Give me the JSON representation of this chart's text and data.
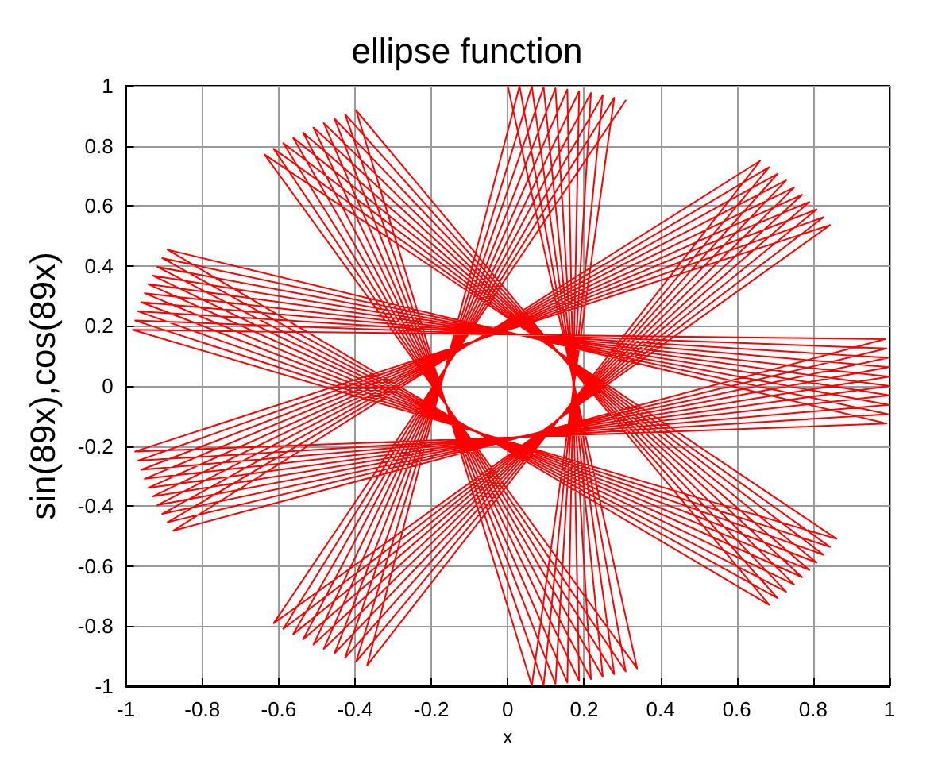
{
  "chart_data": {
    "type": "line",
    "title": "ellipse function",
    "xlabel": "x",
    "ylabel": "sin(89x),cos(89x)",
    "xlim": [
      -1,
      1
    ],
    "ylim": [
      -1,
      1
    ],
    "xticks": [
      -1,
      -0.8,
      -0.6,
      -0.4,
      -0.2,
      0,
      0.2,
      0.4,
      0.6,
      0.8,
      1
    ],
    "yticks": [
      -1,
      -0.8,
      -0.6,
      -0.4,
      -0.2,
      0,
      0.2,
      0.4,
      0.6,
      0.8,
      1
    ],
    "grid": true,
    "marker": "none",
    "line_style": "solid",
    "series": [
      {
        "color": "#ff0000",
        "x": [
          0,
          0.339,
          -0.637,
          0.861,
          -0.982,
          0.988,
          -0.876,
          0.661,
          -0.368,
          0.031,
          0.309,
          -0.613,
          0.844,
          -0.976,
          0.992,
          -0.891,
          0.685,
          -0.397,
          0.063,
          0.279,
          -0.588,
          0.827,
          -0.969,
          0.996,
          -0.905,
          0.707,
          -0.426,
          0.094,
          0.249,
          -0.562,
          0.809,
          -0.96,
          0.998,
          -0.918,
          0.729,
          -0.454,
          0.125,
          0.218,
          -0.536,
          0.79,
          -0.951,
          0.999,
          -0.93,
          0.75,
          -0.482,
          0.156,
          0.187,
          -0.509,
          0.771,
          -0.941,
          1,
          -0.941,
          0.771,
          -0.509,
          0.187,
          0.156,
          -0.482,
          0.75,
          -0.93,
          0.999,
          -0.951,
          0.79,
          -0.536,
          0.218,
          0.125,
          -0.454,
          0.729,
          -0.918,
          0.998,
          -0.96,
          0.809,
          -0.562,
          0.249,
          0.094,
          -0.426,
          0.707,
          -0.905,
          0.996,
          -0.969,
          0.827,
          -0.588,
          0.279,
          0.063,
          -0.397,
          0.685,
          -0.891,
          0.992,
          -0.976,
          0.844,
          -0.613,
          0.309
        ],
        "values": [
          1,
          -0.941,
          0.771,
          -0.509,
          0.187,
          0.156,
          -0.482,
          0.75,
          -0.93,
          0.999,
          -0.951,
          0.79,
          -0.536,
          0.218,
          0.125,
          -0.454,
          0.729,
          -0.918,
          0.998,
          -0.96,
          0.809,
          -0.562,
          0.249,
          0.094,
          -0.426,
          0.707,
          -0.905,
          0.996,
          -0.969,
          0.827,
          -0.588,
          0.279,
          0.063,
          -0.397,
          0.685,
          -0.891,
          0.992,
          -0.976,
          0.844,
          -0.613,
          0.309,
          0.031,
          -0.368,
          0.661,
          -0.876,
          0.988,
          -0.982,
          0.861,
          -0.637,
          0.339,
          0,
          -0.339,
          0.637,
          -0.861,
          0.982,
          -0.988,
          0.876,
          -0.661,
          0.368,
          -0.031,
          -0.309,
          0.613,
          -0.844,
          0.976,
          -0.992,
          0.891,
          -0.685,
          0.397,
          -0.063,
          -0.279,
          0.588,
          -0.827,
          0.969,
          -0.996,
          0.905,
          -0.707,
          0.426,
          -0.094,
          -0.249,
          0.562,
          -0.809,
          0.96,
          -0.998,
          0.918,
          -0.729,
          0.454,
          -0.125,
          -0.218,
          0.536,
          -0.79,
          0.951
        ]
      }
    ]
  }
}
